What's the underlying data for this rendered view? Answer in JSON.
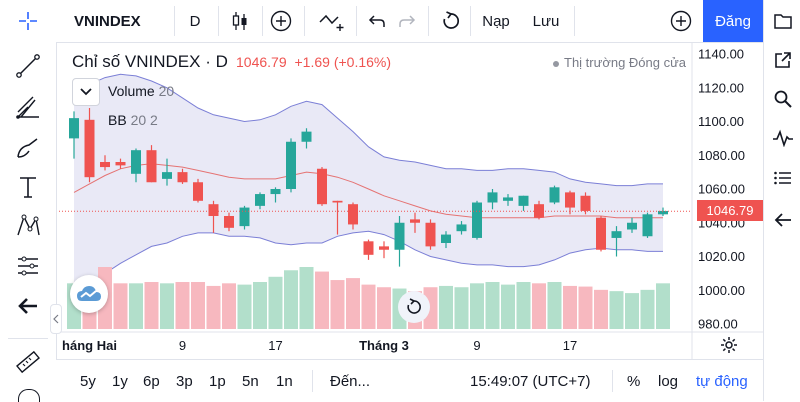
{
  "toolbar": {
    "symbol": "VNINDEX",
    "interval": "D",
    "load_label": "Nạp",
    "save_label": "Lưu",
    "login_label": "Đăng"
  },
  "legend": {
    "title": "Chỉ số VNINDEX · D",
    "close": "1046.79",
    "change": "+1.69 (+0.16%)",
    "market_status": "Thị trường Đóng cửa",
    "indicators": [
      {
        "name": "Volume",
        "value": "20"
      },
      {
        "name": "BB",
        "value": "20 2"
      }
    ]
  },
  "price_tag": "1046.79",
  "bottom": {
    "ranges": [
      "5y",
      "1y",
      "6p",
      "3p",
      "1p",
      "5n",
      "1n"
    ],
    "goto": "Đến...",
    "time": "15:49:07 (UTC+7)",
    "percent": "%",
    "log": "log",
    "auto": "tự động"
  },
  "colors": {
    "up": "#26a69a",
    "down": "#ef5350",
    "vol_up": "#b2dfcb",
    "vol_down": "#f7b8bf",
    "band_fill": "#e9e9f6",
    "band_line": "#7b7fd6",
    "accent": "#2962ff"
  },
  "chart_data": {
    "type": "candlestick",
    "title": "Chỉ số VNINDEX · D",
    "yticks": [
      "1140.00",
      "1120.00",
      "1100.00",
      "1080.00",
      "1060.00",
      "1040.00",
      "1020.00",
      "1000.00",
      "980.00"
    ],
    "xticks": [
      {
        "label": "háng Hai",
        "i": 1
      },
      {
        "label": "9",
        "i": 7
      },
      {
        "label": "17",
        "i": 13
      },
      {
        "label": "Tháng 3",
        "i": 20
      },
      {
        "label": "9",
        "i": 26
      },
      {
        "label": "17",
        "i": 32
      }
    ],
    "ylim": [
      980,
      1140
    ],
    "candles": [
      {
        "o": 1090,
        "h": 1106,
        "l": 1078,
        "c": 1102
      },
      {
        "o": 1101,
        "h": 1108,
        "l": 1064,
        "c": 1067
      },
      {
        "o": 1076,
        "h": 1080,
        "l": 1071,
        "c": 1073
      },
      {
        "o": 1076,
        "h": 1078,
        "l": 1072,
        "c": 1074
      },
      {
        "o": 1069,
        "h": 1084,
        "l": 1064,
        "c": 1083
      },
      {
        "o": 1083,
        "h": 1086,
        "l": 1064,
        "c": 1064
      },
      {
        "o": 1066,
        "h": 1078,
        "l": 1062,
        "c": 1070
      },
      {
        "o": 1070,
        "h": 1072,
        "l": 1063,
        "c": 1064
      },
      {
        "o": 1064,
        "h": 1066,
        "l": 1052,
        "c": 1053
      },
      {
        "o": 1051,
        "h": 1053,
        "l": 1034,
        "c": 1044
      },
      {
        "o": 1044,
        "h": 1046,
        "l": 1035,
        "c": 1037
      },
      {
        "o": 1038,
        "h": 1050,
        "l": 1036,
        "c": 1049
      },
      {
        "o": 1050,
        "h": 1058,
        "l": 1048,
        "c": 1057
      },
      {
        "o": 1057,
        "h": 1061,
        "l": 1052,
        "c": 1060
      },
      {
        "o": 1060,
        "h": 1090,
        "l": 1058,
        "c": 1088
      },
      {
        "o": 1088,
        "h": 1096,
        "l": 1084,
        "c": 1094
      },
      {
        "o": 1072,
        "h": 1073,
        "l": 1050,
        "c": 1051
      },
      {
        "o": 1053,
        "h": 1053,
        "l": 1033,
        "c": 1052
      },
      {
        "o": 1051,
        "h": 1052,
        "l": 1036,
        "c": 1039
      },
      {
        "o": 1029,
        "h": 1030,
        "l": 1018,
        "c": 1021
      },
      {
        "o": 1026,
        "h": 1029,
        "l": 1019,
        "c": 1024
      },
      {
        "o": 1024,
        "h": 1044,
        "l": 1014,
        "c": 1040
      },
      {
        "o": 1042,
        "h": 1046,
        "l": 1034,
        "c": 1040
      },
      {
        "o": 1040,
        "h": 1042,
        "l": 1024,
        "c": 1026
      },
      {
        "o": 1028,
        "h": 1035,
        "l": 1025,
        "c": 1033
      },
      {
        "o": 1035,
        "h": 1041,
        "l": 1033,
        "c": 1039
      },
      {
        "o": 1031,
        "h": 1053,
        "l": 1030,
        "c": 1052
      },
      {
        "o": 1052,
        "h": 1060,
        "l": 1048,
        "c": 1058
      },
      {
        "o": 1053,
        "h": 1057,
        "l": 1050,
        "c": 1055
      },
      {
        "o": 1050,
        "h": 1056,
        "l": 1047,
        "c": 1056
      },
      {
        "o": 1051,
        "h": 1053,
        "l": 1042,
        "c": 1043
      },
      {
        "o": 1052,
        "h": 1062,
        "l": 1051,
        "c": 1061
      },
      {
        "o": 1058,
        "h": 1059,
        "l": 1045,
        "c": 1049
      },
      {
        "o": 1056,
        "h": 1058,
        "l": 1045,
        "c": 1047
      },
      {
        "o": 1043,
        "h": 1044,
        "l": 1023,
        "c": 1024
      },
      {
        "o": 1031,
        "h": 1038,
        "l": 1020,
        "c": 1035
      },
      {
        "o": 1036,
        "h": 1043,
        "l": 1034,
        "c": 1040
      },
      {
        "o": 1032,
        "h": 1046,
        "l": 1031,
        "c": 1045
      },
      {
        "o": 1045,
        "h": 1049,
        "l": 1044,
        "c": 1047
      }
    ],
    "volumes": [
      70,
      75,
      95,
      70,
      70,
      72,
      70,
      72,
      72,
      66,
      70,
      68,
      72,
      80,
      90,
      95,
      88,
      75,
      78,
      68,
      64,
      62,
      58,
      64,
      66,
      64,
      70,
      72,
      68,
      72,
      70,
      72,
      66,
      65,
      60,
      58,
      55,
      60,
      70
    ],
    "bb_upper": [
      1112,
      1122,
      1126,
      1128,
      1127,
      1124,
      1120,
      1114,
      1108,
      1104,
      1102,
      1100,
      1101,
      1104,
      1109,
      1112,
      1110,
      1102,
      1094,
      1085,
      1079,
      1077,
      1076,
      1074,
      1072,
      1072,
      1071,
      1071,
      1072,
      1072,
      1071,
      1070,
      1066,
      1064,
      1063,
      1062,
      1062,
      1063,
      1063
    ],
    "bb_mid": [
      1058,
      1063,
      1068,
      1072,
      1074,
      1075,
      1074,
      1073,
      1071,
      1069,
      1067,
      1066,
      1066,
      1066,
      1068,
      1070,
      1069,
      1067,
      1064,
      1060,
      1056,
      1053,
      1050,
      1047,
      1045,
      1044,
      1043,
      1043,
      1043,
      1043,
      1043,
      1044,
      1044,
      1044,
      1044,
      1043,
      1043,
      1043,
      1043
    ],
    "bb_lower": [
      1004,
      1004,
      1010,
      1016,
      1021,
      1026,
      1028,
      1032,
      1034,
      1034,
      1032,
      1032,
      1031,
      1028,
      1027,
      1028,
      1028,
      1032,
      1034,
      1035,
      1033,
      1029,
      1024,
      1020,
      1018,
      1016,
      1015,
      1015,
      1014,
      1014,
      1015,
      1018,
      1022,
      1024,
      1025,
      1024,
      1024,
      1023,
      1023
    ]
  }
}
